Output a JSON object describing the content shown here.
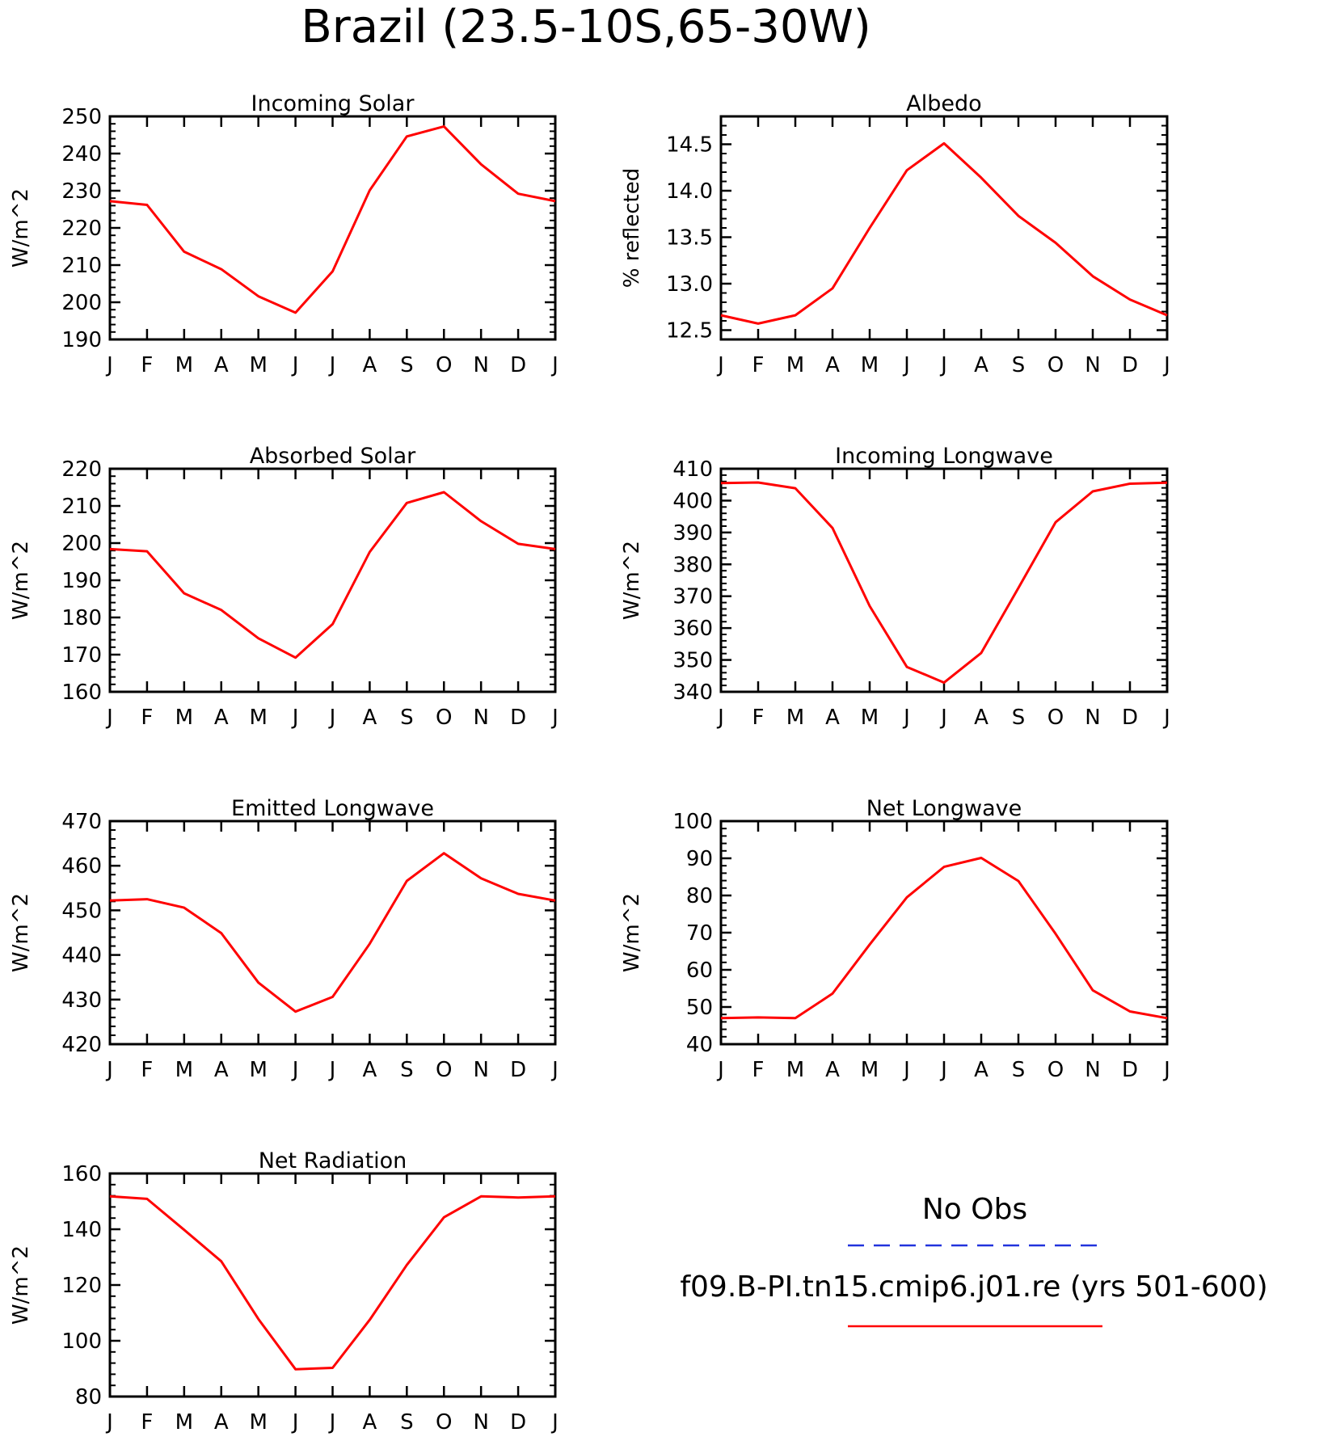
{
  "title": "Brazil (23.5-10S,65-30W)",
  "months": [
    "J",
    "F",
    "M",
    "A",
    "M",
    "J",
    "J",
    "A",
    "S",
    "O",
    "N",
    "D",
    "J"
  ],
  "legend": {
    "obs_label": "No Obs",
    "obs_color": "#2233dd",
    "model_label": "f09.B-PI.tn15.cmip6.j01.re (yrs 501-600)",
    "model_color": "#ff0000"
  },
  "chart_data": [
    {
      "type": "line",
      "title": "Incoming Solar",
      "ylabel": "W/m^2",
      "ylim": [
        190,
        250
      ],
      "yticks": [
        190,
        200,
        210,
        220,
        230,
        240,
        250
      ],
      "ytick_labels": [
        "190",
        "200",
        "210",
        "220",
        "230",
        "240",
        "250"
      ],
      "series": [
        {
          "values": [
            227.2,
            226.2,
            213.6,
            208.9,
            201.6,
            197.2,
            208.3,
            230.1,
            244.6,
            247.3,
            237.1,
            229.2,
            227.2
          ]
        }
      ]
    },
    {
      "type": "line",
      "title": "Albedo",
      "ylabel": "% reflected",
      "ylim": [
        12.4,
        14.8
      ],
      "yticks": [
        12.5,
        13.0,
        13.5,
        14.0,
        14.5
      ],
      "ytick_labels": [
        "12.5",
        "13.0",
        "13.5",
        "14.0",
        "14.5"
      ],
      "series": [
        {
          "values": [
            12.66,
            12.57,
            12.66,
            12.95,
            13.6,
            14.22,
            14.51,
            14.14,
            13.73,
            13.44,
            13.08,
            12.83,
            12.66
          ]
        }
      ]
    },
    {
      "type": "line",
      "title": "Absorbed Solar",
      "ylabel": "W/m^2",
      "ylim": [
        160,
        220
      ],
      "yticks": [
        160,
        170,
        180,
        190,
        200,
        210,
        220
      ],
      "ytick_labels": [
        "160",
        "170",
        "180",
        "190",
        "200",
        "210",
        "220"
      ],
      "series": [
        {
          "values": [
            198.4,
            197.8,
            186.5,
            182.0,
            174.4,
            169.2,
            178.2,
            197.6,
            210.8,
            213.7,
            205.9,
            199.8,
            198.4
          ]
        }
      ]
    },
    {
      "type": "line",
      "title": "Incoming Longwave",
      "ylabel": "W/m^2",
      "ylim": [
        340,
        410
      ],
      "yticks": [
        340,
        350,
        360,
        370,
        380,
        390,
        400,
        410
      ],
      "ytick_labels": [
        "340",
        "350",
        "360",
        "370",
        "380",
        "390",
        "400",
        "410"
      ],
      "series": [
        {
          "values": [
            405.5,
            405.7,
            403.9,
            391.4,
            366.9,
            347.8,
            342.9,
            352.2,
            372.6,
            393.2,
            402.9,
            405.3,
            405.6
          ]
        }
      ]
    },
    {
      "type": "line",
      "title": "Emitted Longwave",
      "ylabel": "W/m^2",
      "ylim": [
        420,
        470
      ],
      "yticks": [
        420,
        430,
        440,
        450,
        460,
        470
      ],
      "ytick_labels": [
        "420",
        "430",
        "440",
        "450",
        "460",
        "470"
      ],
      "series": [
        {
          "values": [
            452.2,
            452.5,
            450.6,
            444.9,
            433.8,
            427.3,
            430.6,
            442.5,
            456.6,
            462.8,
            457.2,
            453.7,
            452.2
          ]
        }
      ]
    },
    {
      "type": "line",
      "title": "Net Longwave",
      "ylabel": "W/m^2",
      "ylim": [
        40,
        100
      ],
      "yticks": [
        40,
        50,
        60,
        70,
        80,
        90,
        100
      ],
      "ytick_labels": [
        "40",
        "50",
        "60",
        "70",
        "80",
        "90",
        "100"
      ],
      "series": [
        {
          "values": [
            47.0,
            47.2,
            47.0,
            53.6,
            66.8,
            79.5,
            87.7,
            90.1,
            83.9,
            69.7,
            54.5,
            48.8,
            47.0
          ]
        }
      ]
    },
    {
      "type": "line",
      "title": "Net Radiation",
      "ylabel": "W/m^2",
      "ylim": [
        80,
        160
      ],
      "yticks": [
        80,
        100,
        120,
        140,
        160
      ],
      "ytick_labels": [
        "80",
        "100",
        "120",
        "140",
        "160"
      ],
      "series": [
        {
          "values": [
            151.8,
            150.9,
            139.8,
            128.5,
            107.8,
            89.8,
            90.3,
            107.5,
            127.2,
            144.3,
            151.8,
            151.4,
            151.8
          ]
        }
      ]
    }
  ]
}
